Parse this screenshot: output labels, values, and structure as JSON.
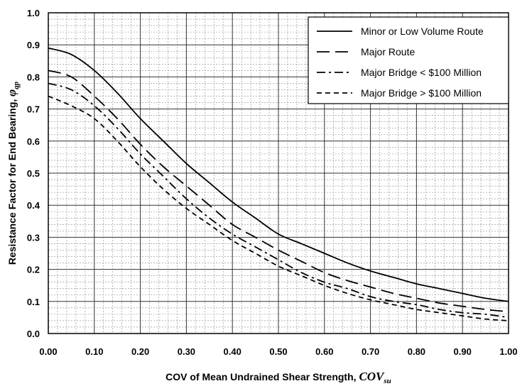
{
  "chart_data": {
    "type": "line",
    "xlabel": "COV of Mean Undrained Shear Strength,",
    "xlabel_symbol": "COV",
    "xlabel_subscript": "su",
    "ylabel": "Resistance Factor for End Bearing,",
    "ylabel_symbol": "φ",
    "ylabel_subscript": "qp",
    "xlim": [
      0,
      1
    ],
    "ylim": [
      0,
      1
    ],
    "x_ticks": [
      "0.00",
      "0.10",
      "0.20",
      "0.30",
      "0.40",
      "0.50",
      "0.60",
      "0.70",
      "0.80",
      "0.90",
      "1.00"
    ],
    "y_ticks": [
      "0.0",
      "0.1",
      "0.2",
      "0.3",
      "0.4",
      "0.5",
      "0.6",
      "0.7",
      "0.8",
      "0.9",
      "1.0"
    ],
    "grid": true,
    "legend_position": "top-right",
    "x": [
      0.0,
      0.05,
      0.1,
      0.15,
      0.2,
      0.25,
      0.3,
      0.35,
      0.4,
      0.45,
      0.5,
      0.55,
      0.6,
      0.65,
      0.7,
      0.75,
      0.8,
      0.85,
      0.9,
      0.95,
      1.0
    ],
    "series": [
      {
        "name": "Minor or Low Volume Route",
        "dash": "solid",
        "values": [
          0.89,
          0.87,
          0.82,
          0.75,
          0.67,
          0.6,
          0.53,
          0.47,
          0.41,
          0.36,
          0.31,
          0.28,
          0.25,
          0.22,
          0.195,
          0.175,
          0.155,
          0.14,
          0.125,
          0.11,
          0.1
        ]
      },
      {
        "name": "Major Route",
        "dash": "long-dash",
        "values": [
          0.82,
          0.8,
          0.74,
          0.67,
          0.59,
          0.52,
          0.46,
          0.4,
          0.34,
          0.3,
          0.26,
          0.225,
          0.19,
          0.165,
          0.145,
          0.125,
          0.11,
          0.095,
          0.085,
          0.075,
          0.068
        ]
      },
      {
        "name": "Major Bridge < $100 Million",
        "dash": "dash-dot",
        "values": [
          0.78,
          0.76,
          0.71,
          0.64,
          0.56,
          0.49,
          0.42,
          0.36,
          0.31,
          0.27,
          0.23,
          0.19,
          0.16,
          0.14,
          0.115,
          0.1,
          0.09,
          0.075,
          0.065,
          0.06,
          0.05
        ]
      },
      {
        "name": "Major Bridge > $100 Million",
        "dash": "short-dash",
        "values": [
          0.74,
          0.71,
          0.67,
          0.6,
          0.52,
          0.45,
          0.39,
          0.34,
          0.29,
          0.25,
          0.21,
          0.18,
          0.15,
          0.125,
          0.105,
          0.09,
          0.075,
          0.065,
          0.055,
          0.045,
          0.04
        ]
      }
    ]
  }
}
